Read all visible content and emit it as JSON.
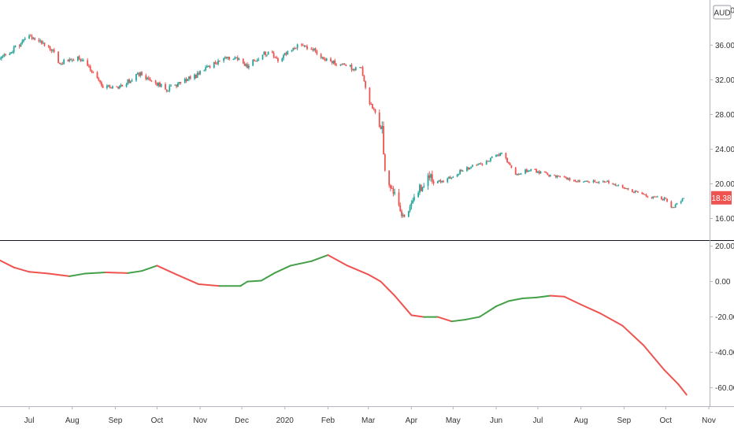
{
  "chart_data": [
    {
      "type": "candlestick",
      "panel": "price",
      "currency": "AUD",
      "top_partial_label": "40.00",
      "y_ticks": [
        "36.00",
        "32.00",
        "28.00",
        "24.00",
        "20.00",
        "16.00"
      ],
      "ylim": [
        13.5,
        41.2
      ],
      "last_price": "18.38",
      "colors": {
        "up": "#26a69a",
        "down": "#ef5350"
      },
      "series": {
        "name": "",
        "anchors_date_close": [
          [
            "2019-06-10",
            34.4
          ],
          [
            "2019-06-20",
            35.6
          ],
          [
            "2019-07-01",
            36.9
          ],
          [
            "2019-07-10",
            36.2
          ],
          [
            "2019-07-18",
            35.5
          ],
          [
            "2019-07-23",
            33.9
          ],
          [
            "2019-08-05",
            34.6
          ],
          [
            "2019-08-14",
            33.3
          ],
          [
            "2019-08-23",
            31.1
          ],
          [
            "2019-09-05",
            31.3
          ],
          [
            "2019-09-18",
            32.7
          ],
          [
            "2019-09-27",
            31.9
          ],
          [
            "2019-10-08",
            30.9
          ],
          [
            "2019-10-18",
            31.7
          ],
          [
            "2019-10-31",
            32.6
          ],
          [
            "2019-11-15",
            34.3
          ],
          [
            "2019-11-25",
            34.7
          ],
          [
            "2019-12-05",
            33.6
          ],
          [
            "2019-12-19",
            35.2
          ],
          [
            "2019-12-27",
            34.4
          ],
          [
            "2020-01-10",
            36.0
          ],
          [
            "2020-01-21",
            35.6
          ],
          [
            "2020-01-31",
            34.3
          ],
          [
            "2020-02-10",
            33.6
          ],
          [
            "2020-02-25",
            33.3
          ],
          [
            "2020-03-02",
            29.4
          ],
          [
            "2020-03-11",
            26.6
          ],
          [
            "2020-03-13",
            21.5
          ],
          [
            "2020-03-20",
            18.6
          ],
          [
            "2020-03-27",
            16.0
          ],
          [
            "2020-04-03",
            18.8
          ],
          [
            "2020-04-13",
            20.6
          ],
          [
            "2020-04-24",
            20.3
          ],
          [
            "2020-05-08",
            21.6
          ],
          [
            "2020-05-22",
            22.4
          ],
          [
            "2020-06-05",
            23.4
          ],
          [
            "2020-06-10",
            22.4
          ],
          [
            "2020-06-15",
            21.2
          ],
          [
            "2020-06-26",
            21.6
          ],
          [
            "2020-07-10",
            21.0
          ],
          [
            "2020-07-24",
            20.5
          ],
          [
            "2020-08-07",
            20.3
          ],
          [
            "2020-08-21",
            20.2
          ],
          [
            "2020-09-04",
            19.3
          ],
          [
            "2020-09-18",
            18.6
          ],
          [
            "2020-10-01",
            18.2
          ],
          [
            "2020-10-06",
            17.2
          ],
          [
            "2020-10-14",
            18.38
          ]
        ]
      }
    },
    {
      "type": "line",
      "panel": "indicator",
      "y_ticks": [
        "20.00",
        "0.00",
        "-20.00",
        "-40.00",
        "-60.00"
      ],
      "ylim": [
        -70.5,
        23.0
      ],
      "colors": {
        "rising": "#43a047",
        "falling": "#ef5350"
      },
      "series": {
        "name": "",
        "points_date_value": [
          [
            "2019-06-10",
            12.0
          ],
          [
            "2019-06-20",
            8.0
          ],
          [
            "2019-07-01",
            5.5
          ],
          [
            "2019-07-15",
            4.5
          ],
          [
            "2019-07-30",
            3.0
          ],
          [
            "2019-08-10",
            4.5
          ],
          [
            "2019-08-25",
            5.2
          ],
          [
            "2019-09-10",
            4.8
          ],
          [
            "2019-09-20",
            6.0
          ],
          [
            "2019-10-01",
            9.0
          ],
          [
            "2019-10-15",
            4.0
          ],
          [
            "2019-10-31",
            -1.5
          ],
          [
            "2019-11-15",
            -2.5
          ],
          [
            "2019-11-30",
            -2.5
          ],
          [
            "2019-12-05",
            0.0
          ],
          [
            "2019-12-15",
            0.5
          ],
          [
            "2019-12-25",
            5.0
          ],
          [
            "2020-01-05",
            9.0
          ],
          [
            "2020-01-20",
            11.5
          ],
          [
            "2020-02-01",
            15.0
          ],
          [
            "2020-02-15",
            9.0
          ],
          [
            "2020-03-01",
            4.0
          ],
          [
            "2020-03-10",
            0.0
          ],
          [
            "2020-03-20",
            -8.0
          ],
          [
            "2020-04-01",
            -19.0
          ],
          [
            "2020-04-10",
            -20.0
          ],
          [
            "2020-04-20",
            -20.0
          ],
          [
            "2020-04-30",
            -22.5
          ],
          [
            "2020-05-10",
            -21.5
          ],
          [
            "2020-05-20",
            -20.0
          ],
          [
            "2020-06-01",
            -14.0
          ],
          [
            "2020-06-10",
            -11.0
          ],
          [
            "2020-06-20",
            -9.5
          ],
          [
            "2020-06-30",
            -9.0
          ],
          [
            "2020-07-10",
            -8.0
          ],
          [
            "2020-07-20",
            -8.5
          ],
          [
            "2020-08-01",
            -13.0
          ],
          [
            "2020-08-15",
            -18.0
          ],
          [
            "2020-08-31",
            -25.0
          ],
          [
            "2020-09-15",
            -36.0
          ],
          [
            "2020-09-30",
            -50.0
          ],
          [
            "2020-10-10",
            -58.0
          ],
          [
            "2020-10-16",
            -64.0
          ]
        ]
      }
    }
  ],
  "x_axis": {
    "labels": [
      {
        "text": "Jul",
        "date": "2019-07-01"
      },
      {
        "text": "Aug",
        "date": "2019-08-01"
      },
      {
        "text": "Sep",
        "date": "2019-09-01"
      },
      {
        "text": "Oct",
        "date": "2019-10-01"
      },
      {
        "text": "Nov",
        "date": "2019-11-01"
      },
      {
        "text": "Dec",
        "date": "2019-12-01"
      },
      {
        "text": "2020",
        "date": "2020-01-01"
      },
      {
        "text": "Feb",
        "date": "2020-02-01"
      },
      {
        "text": "Mar",
        "date": "2020-03-01"
      },
      {
        "text": "Apr",
        "date": "2020-04-01"
      },
      {
        "text": "May",
        "date": "2020-05-01"
      },
      {
        "text": "Jun",
        "date": "2020-06-01"
      },
      {
        "text": "Jul",
        "date": "2020-07-01"
      },
      {
        "text": "Aug",
        "date": "2020-08-01"
      },
      {
        "text": "Sep",
        "date": "2020-09-01"
      },
      {
        "text": "Oct",
        "date": "2020-10-01"
      },
      {
        "text": "Nov",
        "date": "2020-11-01"
      }
    ],
    "range": [
      "2019-06-10",
      "2020-11-01"
    ]
  },
  "grid": false,
  "legend": "none"
}
